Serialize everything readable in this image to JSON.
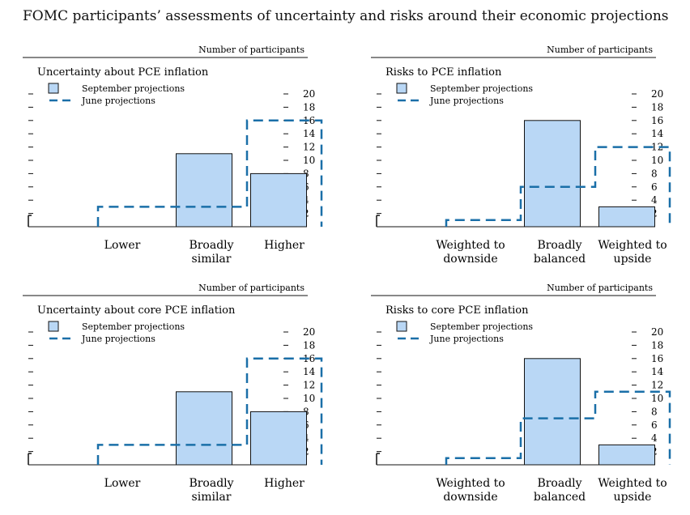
{
  "title": "FOMC participants’ assessments of uncertainty and risks around their economic projections",
  "colors": {
    "bar_fill": "#b9d7f5",
    "bar_stroke": "#111111",
    "dash": "#1a6fa8"
  },
  "chart_data": [
    {
      "type": "bar",
      "title": "Uncertainty about PCE inflation",
      "ylabel": "Number of participants",
      "categories": [
        [
          "Lower"
        ],
        [
          "Broadly",
          "similar"
        ],
        [
          "Higher"
        ]
      ],
      "yticks": [
        "20",
        "18",
        "16",
        "14",
        "12",
        "10",
        "8",
        "6",
        "4",
        "2"
      ],
      "ylim": [
        0,
        20
      ],
      "series": [
        {
          "name": "September projections",
          "values": [
            0,
            11,
            8
          ]
        },
        {
          "name": "June projections",
          "values": [
            3,
            3,
            16
          ]
        }
      ]
    },
    {
      "type": "bar",
      "title": "Risks to PCE inflation",
      "ylabel": "Number of participants",
      "categories": [
        [
          "Weighted to",
          "downside"
        ],
        [
          "Broadly",
          "balanced"
        ],
        [
          "Weighted to",
          "upside"
        ]
      ],
      "yticks": [
        "20",
        "18",
        "16",
        "14",
        "12",
        "10",
        "8",
        "6",
        "4",
        "2"
      ],
      "ylim": [
        0,
        20
      ],
      "series": [
        {
          "name": "September projections",
          "values": [
            0,
            16,
            3
          ]
        },
        {
          "name": "June projections",
          "values": [
            1,
            6,
            12
          ]
        }
      ]
    },
    {
      "type": "bar",
      "title": "Uncertainty about core PCE inflation",
      "ylabel": "Number of participants",
      "categories": [
        [
          "Lower"
        ],
        [
          "Broadly",
          "similar"
        ],
        [
          "Higher"
        ]
      ],
      "yticks": [
        "20",
        "18",
        "16",
        "14",
        "12",
        "10",
        "8",
        "6",
        "4",
        "2"
      ],
      "ylim": [
        0,
        20
      ],
      "series": [
        {
          "name": "September projections",
          "values": [
            0,
            11,
            8
          ]
        },
        {
          "name": "June projections",
          "values": [
            3,
            3,
            16
          ]
        }
      ]
    },
    {
      "type": "bar",
      "title": "Risks to core PCE inflation",
      "ylabel": "Number of participants",
      "categories": [
        [
          "Weighted to",
          "downside"
        ],
        [
          "Broadly",
          "balanced"
        ],
        [
          "Weighted to",
          "upside"
        ]
      ],
      "yticks": [
        "20",
        "18",
        "16",
        "14",
        "12",
        "10",
        "8",
        "6",
        "4",
        "2"
      ],
      "ylim": [
        0,
        20
      ],
      "series": [
        {
          "name": "September projections",
          "values": [
            0,
            16,
            3
          ]
        },
        {
          "name": "June projections",
          "values": [
            1,
            7,
            11
          ]
        }
      ]
    }
  ]
}
